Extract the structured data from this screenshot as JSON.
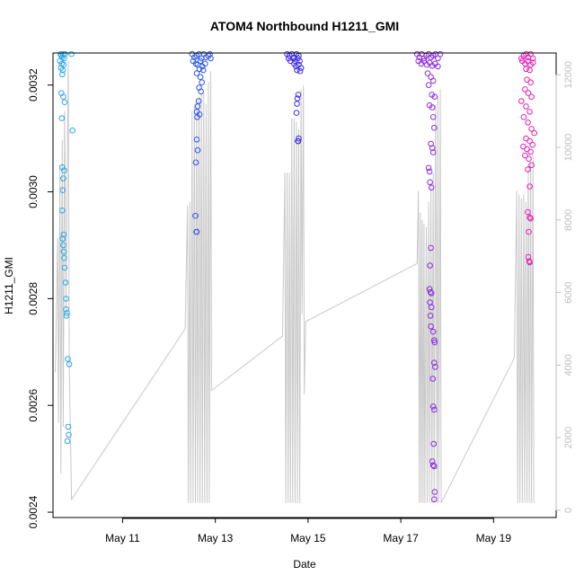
{
  "chart_data": {
    "type": "scatter",
    "title": "ATOM4 Northbound H1211_GMI",
    "xlabel": "Date",
    "ylabel": "H1211_GMI",
    "x_ticks": [
      {
        "label": "May 11",
        "day": 11
      },
      {
        "label": "May 13",
        "day": 13
      },
      {
        "label": "May 15",
        "day": 15
      },
      {
        "label": "May 17",
        "day": 17
      },
      {
        "label": "May 19",
        "day": 19
      }
    ],
    "xlim_days": [
      9.5,
      20.35
    ],
    "ylim": [
      0.00239,
      0.00326
    ],
    "y_ticks": [
      0.0024,
      0.0026,
      0.0028,
      0.003,
      0.0032
    ],
    "y_tick_labels": [
      "0.0024",
      "0.0026",
      "0.0028",
      "0.0030",
      "0.0032"
    ],
    "y2_label_color": "#bdbdbd",
    "y2_ticks": [
      0,
      2000,
      4000,
      6000,
      8000,
      10000,
      12000
    ],
    "y2_tick_labels": [
      "0",
      "2000",
      "4000",
      "6000",
      "8000",
      "10000",
      "12000"
    ],
    "y2lim": [
      -200,
      12600
    ],
    "grid": false,
    "altitude_line_color": "#c8c8c8",
    "series": [
      {
        "color": "#2aa7e6",
        "points": [
          [
            9.66,
            0.003258
          ],
          [
            9.68,
            0.003255
          ],
          [
            9.7,
            0.003252
          ],
          [
            9.72,
            0.003258
          ],
          [
            9.74,
            0.00325
          ],
          [
            9.65,
            0.003245
          ],
          [
            9.69,
            0.00324
          ],
          [
            9.73,
            0.003238
          ],
          [
            9.67,
            0.003232
          ],
          [
            9.71,
            0.003228
          ],
          [
            9.7,
            0.00322
          ],
          [
            9.68,
            0.003185
          ],
          [
            9.72,
            0.003178
          ],
          [
            9.75,
            0.003168
          ],
          [
            9.69,
            0.003138
          ],
          [
            9.92,
            0.003115
          ],
          [
            9.9,
            0.003258
          ],
          [
            9.76,
            0.003258
          ],
          [
            9.7,
            0.003046
          ],
          [
            9.74,
            0.00304
          ],
          [
            9.72,
            0.003025
          ],
          [
            9.71,
            0.003003
          ],
          [
            9.7,
            0.002965
          ],
          [
            9.73,
            0.00292
          ],
          [
            9.71,
            0.002912
          ],
          [
            9.72,
            0.0029
          ],
          [
            9.73,
            0.002888
          ],
          [
            9.74,
            0.002876
          ],
          [
            9.75,
            0.002858
          ],
          [
            9.77,
            0.00283
          ],
          [
            9.78,
            0.0028
          ],
          [
            9.78,
            0.00278
          ],
          [
            9.8,
            0.002773
          ],
          [
            9.79,
            0.002768
          ],
          [
            9.82,
            0.002687
          ],
          [
            9.85,
            0.002677
          ],
          [
            9.83,
            0.00256
          ],
          [
            9.84,
            0.002545
          ],
          [
            9.81,
            0.002533
          ]
        ]
      },
      {
        "color": "#2d56e8",
        "points": [
          [
            12.5,
            0.003258
          ],
          [
            12.55,
            0.003252
          ],
          [
            12.6,
            0.003255
          ],
          [
            12.65,
            0.003258
          ],
          [
            12.7,
            0.00325
          ],
          [
            12.75,
            0.003258
          ],
          [
            12.8,
            0.003252
          ],
          [
            12.85,
            0.003255
          ],
          [
            12.88,
            0.003258
          ],
          [
            12.9,
            0.00325
          ],
          [
            12.52,
            0.003245
          ],
          [
            12.58,
            0.00324
          ],
          [
            12.62,
            0.003238
          ],
          [
            12.68,
            0.003245
          ],
          [
            12.72,
            0.003235
          ],
          [
            12.78,
            0.00324
          ],
          [
            12.66,
            0.00323
          ],
          [
            12.74,
            0.003228
          ],
          [
            12.6,
            0.003222
          ],
          [
            12.68,
            0.003215
          ],
          [
            12.71,
            0.003205
          ],
          [
            12.65,
            0.003195
          ],
          [
            12.69,
            0.003188
          ],
          [
            12.64,
            0.00317
          ],
          [
            12.62,
            0.00316
          ],
          [
            12.6,
            0.00315
          ],
          [
            12.66,
            0.003145
          ],
          [
            12.61,
            0.00314
          ],
          [
            12.6,
            0.003098
          ],
          [
            12.62,
            0.003078
          ],
          [
            12.58,
            0.003055
          ],
          [
            12.57,
            0.002955
          ],
          [
            12.59,
            0.002925
          ],
          [
            12.6,
            0.002925
          ]
        ]
      },
      {
        "color": "#3f2ce8",
        "points": [
          [
            14.55,
            0.003258
          ],
          [
            14.6,
            0.003255
          ],
          [
            14.65,
            0.003258
          ],
          [
            14.7,
            0.003252
          ],
          [
            14.75,
            0.003258
          ],
          [
            14.8,
            0.003255
          ],
          [
            14.58,
            0.00325
          ],
          [
            14.68,
            0.00325
          ],
          [
            14.78,
            0.00325
          ],
          [
            14.62,
            0.003245
          ],
          [
            14.72,
            0.003245
          ],
          [
            14.82,
            0.003245
          ],
          [
            14.7,
            0.00324
          ],
          [
            14.74,
            0.003235
          ],
          [
            14.8,
            0.003238
          ],
          [
            14.85,
            0.003232
          ],
          [
            14.76,
            0.003228
          ],
          [
            14.83,
            0.003226
          ],
          [
            14.79,
            0.003182
          ],
          [
            14.77,
            0.003175
          ],
          [
            14.76,
            0.003165
          ],
          [
            14.75,
            0.003148
          ],
          [
            14.8,
            0.0031
          ],
          [
            14.78,
            0.003095
          ],
          [
            14.79,
            0.003095
          ]
        ]
      },
      {
        "color": "#8a2be2",
        "points": [
          [
            17.35,
            0.003258
          ],
          [
            17.4,
            0.003252
          ],
          [
            17.45,
            0.003258
          ],
          [
            17.5,
            0.00325
          ],
          [
            17.55,
            0.003255
          ],
          [
            17.6,
            0.003258
          ],
          [
            17.65,
            0.003252
          ],
          [
            17.7,
            0.003255
          ],
          [
            17.75,
            0.003258
          ],
          [
            17.8,
            0.00325
          ],
          [
            17.85,
            0.003258
          ],
          [
            17.38,
            0.003245
          ],
          [
            17.44,
            0.00324
          ],
          [
            17.5,
            0.003245
          ],
          [
            17.56,
            0.003238
          ],
          [
            17.62,
            0.003242
          ],
          [
            17.68,
            0.003236
          ],
          [
            17.74,
            0.00324
          ],
          [
            17.8,
            0.003235
          ],
          [
            17.58,
            0.003222
          ],
          [
            17.65,
            0.003215
          ],
          [
            17.7,
            0.003208
          ],
          [
            17.6,
            0.0032
          ],
          [
            17.67,
            0.003182
          ],
          [
            17.73,
            0.003178
          ],
          [
            17.62,
            0.003162
          ],
          [
            17.68,
            0.003158
          ],
          [
            17.7,
            0.00314
          ],
          [
            17.72,
            0.00312
          ],
          [
            17.65,
            0.00309
          ],
          [
            17.68,
            0.003082
          ],
          [
            17.7,
            0.003074
          ],
          [
            17.6,
            0.003045
          ],
          [
            17.62,
            0.003038
          ],
          [
            17.63,
            0.003018
          ],
          [
            17.66,
            0.003008
          ],
          [
            17.65,
            0.002895
          ],
          [
            17.63,
            0.002862
          ],
          [
            17.62,
            0.002818
          ],
          [
            17.64,
            0.002812
          ],
          [
            17.66,
            0.00281
          ],
          [
            17.63,
            0.002793
          ],
          [
            17.66,
            0.002784
          ],
          [
            17.64,
            0.002768
          ],
          [
            17.65,
            0.002748
          ],
          [
            17.7,
            0.002738
          ],
          [
            17.72,
            0.002722
          ],
          [
            17.73,
            0.002718
          ],
          [
            17.72,
            0.00268
          ],
          [
            17.74,
            0.002672
          ],
          [
            17.69,
            0.00265
          ],
          [
            17.7,
            0.002598
          ],
          [
            17.72,
            0.002592
          ],
          [
            17.71,
            0.002528
          ],
          [
            17.68,
            0.002495
          ],
          [
            17.7,
            0.002488
          ],
          [
            17.72,
            0.002486
          ],
          [
            17.73,
            0.002438
          ],
          [
            17.72,
            0.002424
          ]
        ]
      },
      {
        "color": "#e61eb6",
        "points": [
          [
            19.6,
            0.00325
          ],
          [
            19.65,
            0.003255
          ],
          [
            19.7,
            0.003258
          ],
          [
            19.75,
            0.003252
          ],
          [
            19.8,
            0.003258
          ],
          [
            19.85,
            0.00325
          ],
          [
            19.62,
            0.003245
          ],
          [
            19.68,
            0.00324
          ],
          [
            19.74,
            0.003245
          ],
          [
            19.8,
            0.003238
          ],
          [
            19.85,
            0.003242
          ],
          [
            19.7,
            0.00323
          ],
          [
            19.78,
            0.003228
          ],
          [
            19.72,
            0.00321
          ],
          [
            19.8,
            0.003205
          ],
          [
            19.68,
            0.003192
          ],
          [
            19.75,
            0.003185
          ],
          [
            19.82,
            0.003178
          ],
          [
            19.6,
            0.00317
          ],
          [
            19.7,
            0.00316
          ],
          [
            19.78,
            0.00315
          ],
          [
            19.65,
            0.00314
          ],
          [
            19.74,
            0.00313
          ],
          [
            19.82,
            0.003118
          ],
          [
            19.88,
            0.00311
          ],
          [
            19.7,
            0.0031
          ],
          [
            19.78,
            0.003095
          ],
          [
            19.84,
            0.003088
          ],
          [
            19.64,
            0.003085
          ],
          [
            19.72,
            0.00308
          ],
          [
            19.8,
            0.003075
          ],
          [
            19.68,
            0.003068
          ],
          [
            19.76,
            0.003062
          ],
          [
            19.82,
            0.00305
          ],
          [
            19.74,
            0.003042
          ],
          [
            19.78,
            0.00301
          ],
          [
            19.74,
            0.002962
          ],
          [
            19.78,
            0.002952
          ],
          [
            19.8,
            0.00295
          ],
          [
            19.76,
            0.002925
          ],
          [
            19.75,
            0.002878
          ],
          [
            19.77,
            0.00287
          ],
          [
            19.78,
            0.002868
          ]
        ]
      }
    ],
    "altitude_path": [
      [
        9.55,
        3800
      ],
      [
        9.6,
        7500
      ],
      [
        9.62,
        2400
      ],
      [
        9.65,
        9500
      ],
      [
        9.67,
        1000
      ],
      [
        9.7,
        10200
      ],
      [
        9.72,
        2300
      ],
      [
        9.75,
        11000
      ],
      [
        9.78,
        5500
      ],
      [
        9.83,
        12400
      ],
      [
        9.85,
        4000
      ],
      [
        9.9,
        300
      ],
      [
        12.35,
        5000
      ],
      [
        12.4,
        8400
      ],
      [
        12.42,
        200
      ],
      [
        12.45,
        8500
      ],
      [
        12.47,
        200
      ],
      [
        12.5,
        11000
      ],
      [
        12.52,
        200
      ],
      [
        12.55,
        11200
      ],
      [
        12.57,
        200
      ],
      [
        12.6,
        11300
      ],
      [
        12.62,
        200
      ],
      [
        12.65,
        11400
      ],
      [
        12.67,
        200
      ],
      [
        12.7,
        11500
      ],
      [
        12.72,
        200
      ],
      [
        12.75,
        11500
      ],
      [
        12.77,
        200
      ],
      [
        12.8,
        11200
      ],
      [
        12.82,
        200
      ],
      [
        12.85,
        11800
      ],
      [
        12.87,
        200
      ],
      [
        12.9,
        12100
      ],
      [
        12.92,
        3300
      ],
      [
        14.45,
        4800
      ],
      [
        14.5,
        9300
      ],
      [
        14.52,
        200
      ],
      [
        14.55,
        9300
      ],
      [
        14.57,
        200
      ],
      [
        14.6,
        9300
      ],
      [
        14.62,
        200
      ],
      [
        14.65,
        10800
      ],
      [
        14.67,
        200
      ],
      [
        14.7,
        10800
      ],
      [
        14.72,
        200
      ],
      [
        14.75,
        10700
      ],
      [
        14.77,
        200
      ],
      [
        14.8,
        10500
      ],
      [
        14.82,
        200
      ],
      [
        14.85,
        11600
      ],
      [
        14.87,
        5400
      ],
      [
        14.9,
        11700
      ],
      [
        14.92,
        3200
      ],
      [
        14.95,
        5200
      ],
      [
        17.35,
        6800
      ],
      [
        17.38,
        8800
      ],
      [
        17.4,
        200
      ],
      [
        17.42,
        8200
      ],
      [
        17.44,
        200
      ],
      [
        17.46,
        8000
      ],
      [
        17.48,
        200
      ],
      [
        17.5,
        7900
      ],
      [
        17.52,
        200
      ],
      [
        17.55,
        7800
      ],
      [
        17.57,
        200
      ],
      [
        17.6,
        8500
      ],
      [
        17.62,
        200
      ],
      [
        17.65,
        9000
      ],
      [
        17.67,
        200
      ],
      [
        17.7,
        9300
      ],
      [
        17.72,
        200
      ],
      [
        17.75,
        11200
      ],
      [
        17.78,
        200
      ],
      [
        17.8,
        11400
      ],
      [
        17.82,
        200
      ],
      [
        17.85,
        11600
      ],
      [
        17.87,
        200
      ],
      [
        19.45,
        4200
      ],
      [
        19.5,
        8800
      ],
      [
        19.52,
        200
      ],
      [
        19.55,
        8700
      ],
      [
        19.57,
        200
      ],
      [
        19.6,
        8600
      ],
      [
        19.62,
        200
      ],
      [
        19.65,
        8700
      ],
      [
        19.67,
        200
      ],
      [
        19.7,
        8500
      ],
      [
        19.72,
        200
      ],
      [
        19.75,
        9500
      ],
      [
        19.77,
        200
      ],
      [
        19.8,
        9600
      ],
      [
        19.82,
        200
      ],
      [
        19.85,
        9800
      ],
      [
        19.87,
        200
      ]
    ]
  }
}
